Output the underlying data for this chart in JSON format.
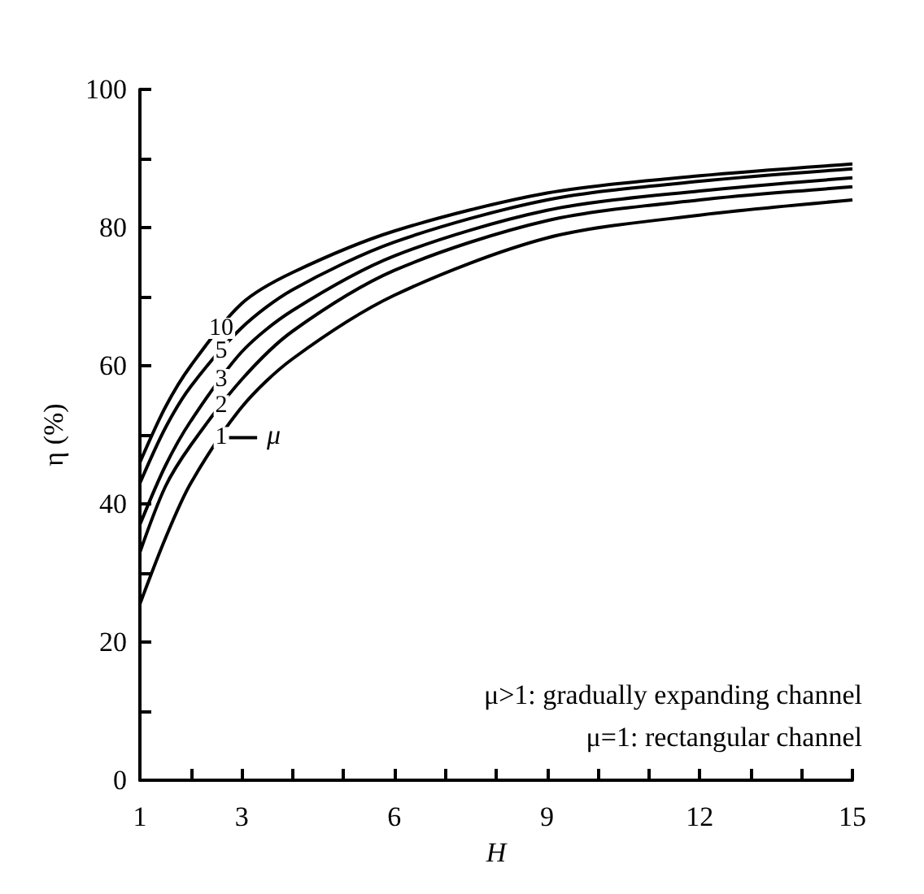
{
  "chart_data": {
    "type": "line",
    "xlabel": "H",
    "ylabel": "η (%)",
    "x": [
      1,
      1.5,
      2,
      3,
      4,
      6,
      9,
      12,
      15
    ],
    "series": [
      {
        "name": "10",
        "color": "#000000",
        "values": [
          46,
          54,
          60,
          69,
          73.5,
          79.5,
          85,
          87.5,
          89.2
        ]
      },
      {
        "name": "5",
        "color": "#000000",
        "values": [
          43,
          51,
          57,
          65.5,
          71,
          77.9,
          84,
          86.7,
          88.5
        ]
      },
      {
        "name": "3",
        "color": "#000000",
        "values": [
          37,
          45.5,
          52,
          62,
          68,
          75.9,
          82.5,
          85.3,
          87.2
        ]
      },
      {
        "name": "2",
        "color": "#000000",
        "values": [
          33,
          42.5,
          48.5,
          58,
          65,
          73.8,
          81,
          84,
          85.9
        ]
      },
      {
        "name": "1",
        "color": "#000000",
        "values": [
          25.5,
          35,
          43,
          54,
          61,
          70.2,
          78.5,
          81.8,
          84
        ]
      }
    ],
    "xlim": [
      1,
      15
    ],
    "xticks": [
      1,
      {
        "value": 2,
        "label": null
      },
      3,
      {
        "value": 4,
        "label": null
      },
      {
        "value": 5,
        "label": null
      },
      6,
      {
        "value": 7,
        "label": null
      },
      {
        "value": 8,
        "label": null
      },
      9,
      {
        "value": 10,
        "label": null
      },
      {
        "value": 11,
        "label": null
      },
      12,
      {
        "value": 13,
        "label": null
      },
      {
        "value": 14,
        "label": null
      },
      15
    ],
    "ylim": [
      0,
      100
    ],
    "yticks": [
      0,
      {
        "value": 10,
        "label": null
      },
      20,
      {
        "value": 30,
        "label": null
      },
      40,
      {
        "value": 50,
        "label": null
      },
      60,
      {
        "value": 70,
        "label": null
      },
      80,
      {
        "value": 90,
        "label": null
      },
      100
    ],
    "grid": false,
    "legend": false,
    "marker": "none",
    "line_style": "solid",
    "annotations": [
      "μ",
      "μ>1: gradually expanding channel",
      "μ=1: rectangular channel"
    ]
  }
}
